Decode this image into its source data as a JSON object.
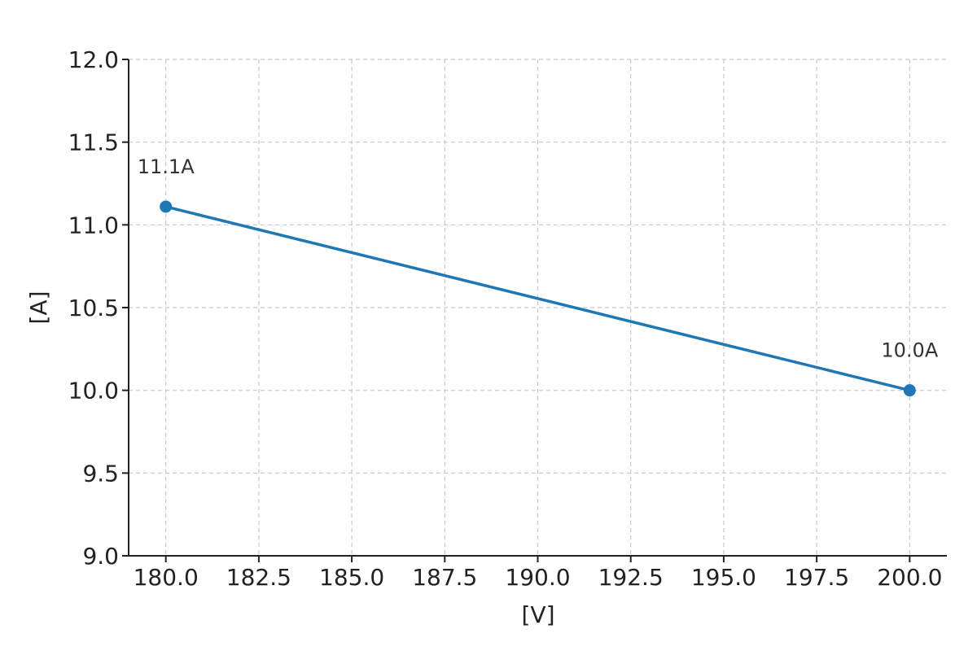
{
  "chart_data": {
    "type": "line",
    "title": "",
    "xlabel": "",
    "ylabel": "",
    "x_unit_label": "[V]",
    "y_unit_label": "[A]",
    "xlim": [
      179,
      201
    ],
    "ylim": [
      9.0,
      12.0
    ],
    "x_ticks": [
      180.0,
      182.5,
      185.0,
      187.5,
      190.0,
      192.5,
      195.0,
      197.5,
      200.0
    ],
    "x_tick_labels": [
      "180.0",
      "182.5",
      "185.0",
      "187.5",
      "190.0",
      "192.5",
      "195.0",
      "197.5",
      "200.0"
    ],
    "y_ticks": [
      9.0,
      9.5,
      10.0,
      10.5,
      11.0,
      11.5,
      12.0
    ],
    "y_tick_labels": [
      "9.0",
      "9.5",
      "10.0",
      "10.5",
      "11.0",
      "11.5",
      "12.0"
    ],
    "grid": true,
    "series": [
      {
        "color": "#1f77b4",
        "x": [
          180.0,
          200.0
        ],
        "y": [
          11.11,
          10.0
        ],
        "labels": [
          "11.1A",
          "10.0A"
        ]
      }
    ]
  }
}
